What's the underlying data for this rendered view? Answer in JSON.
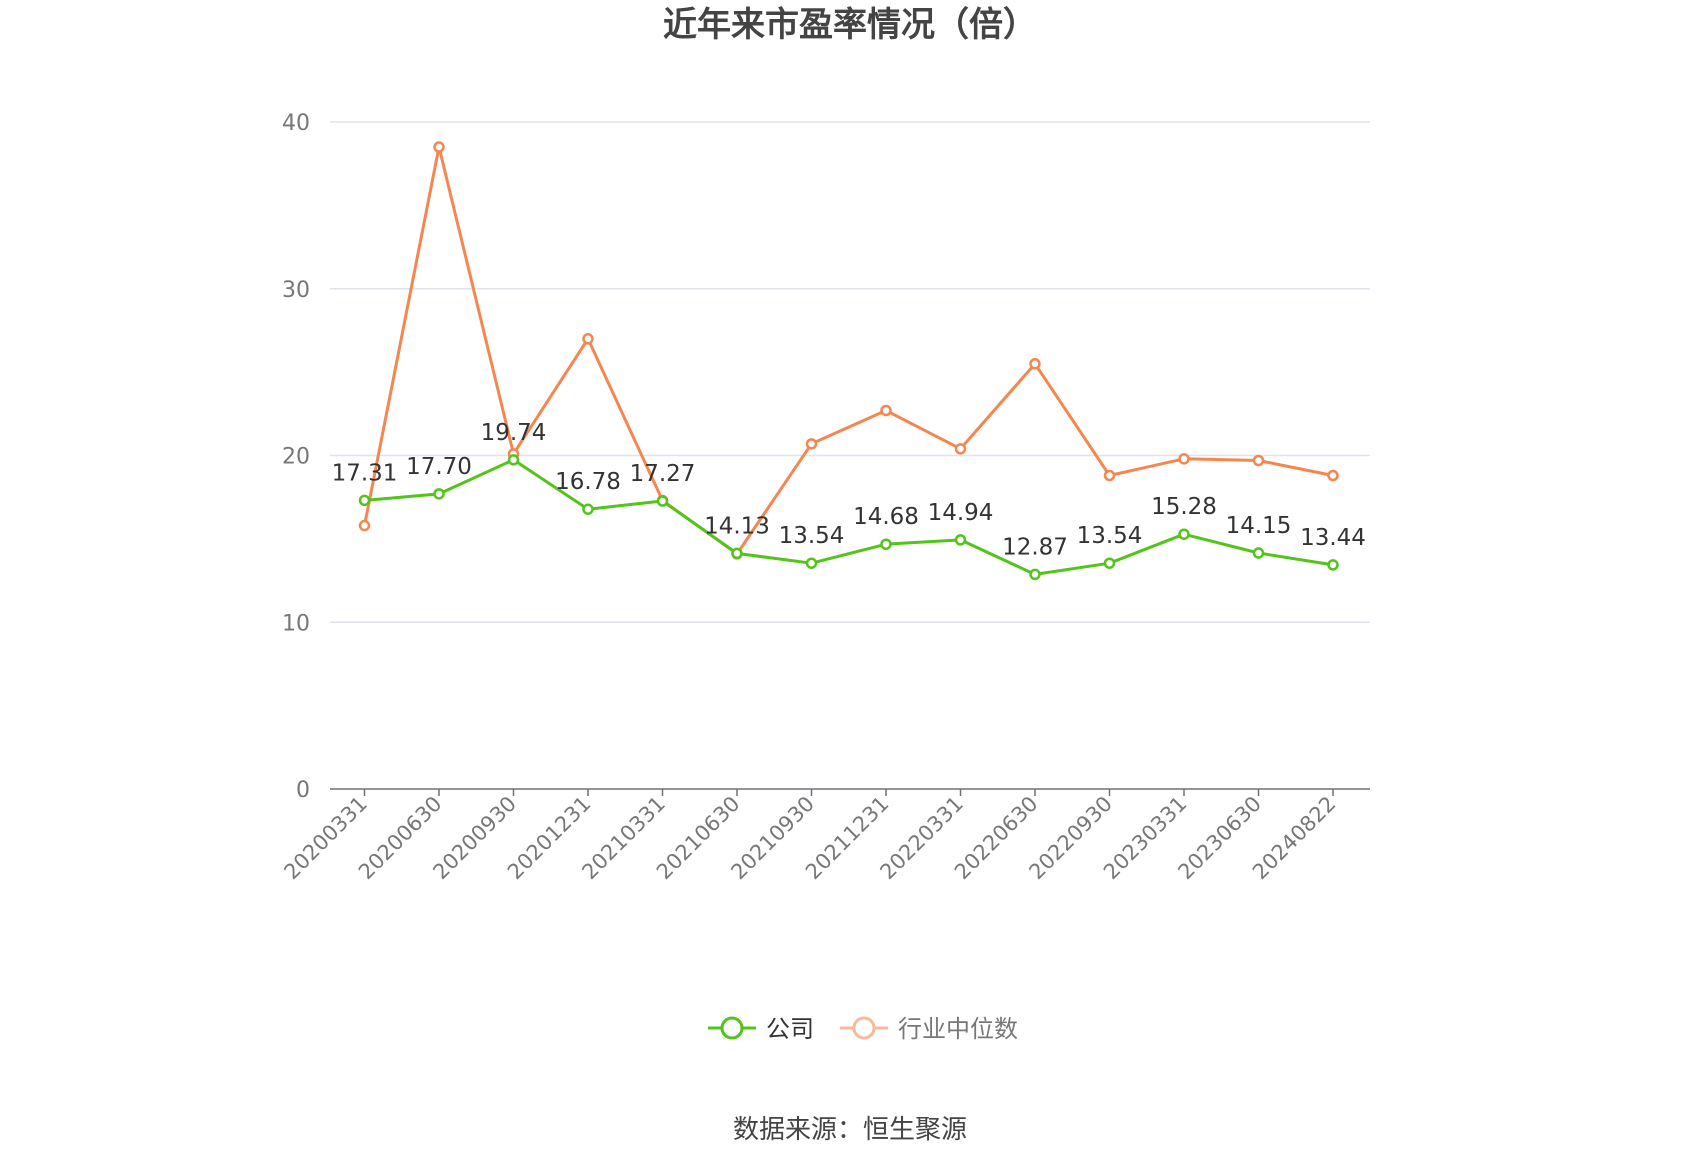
{
  "chart_data": {
    "type": "line",
    "title": "近年来市盈率情况（倍）",
    "categories": [
      "20200331",
      "20200630",
      "20200930",
      "20201231",
      "20210331",
      "20210630",
      "20210930",
      "20211231",
      "20220331",
      "20220630",
      "20220930",
      "20230331",
      "20230630",
      "20240822"
    ],
    "series": [
      {
        "name": "公司",
        "color": "#52c41a",
        "values": [
          17.31,
          17.7,
          19.74,
          16.78,
          17.27,
          14.13,
          13.54,
          14.68,
          14.94,
          12.87,
          13.54,
          15.28,
          14.15,
          13.44
        ],
        "labels": [
          "17.31",
          "17.70",
          "19.74",
          "16.78",
          "17.27",
          "14.13",
          "13.54",
          "14.68",
          "14.94",
          "12.87",
          "13.54",
          "15.28",
          "14.15",
          "13.44"
        ]
      },
      {
        "name": "行业中位数",
        "color": "#f5864f",
        "legend_color": "#f8b89a",
        "values": [
          15.8,
          38.5,
          20.1,
          27.0,
          17.3,
          14.1,
          20.7,
          22.7,
          20.4,
          25.5,
          18.8,
          19.8,
          19.7,
          18.8
        ]
      }
    ],
    "yticks": [
      0,
      10,
      20,
      30,
      40
    ],
    "ylim": [
      0,
      40
    ],
    "grid": true,
    "legend_position": "bottom-center"
  },
  "source": "数据来源：恒生聚源"
}
